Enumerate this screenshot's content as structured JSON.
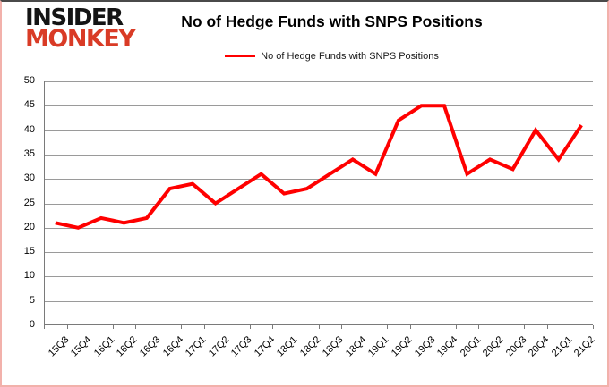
{
  "logo": {
    "line1": "INSIDER",
    "line2": "MONKEY"
  },
  "header": {
    "title": "No of Hedge Funds with SNPS Positions"
  },
  "legend": {
    "label": "No of Hedge Funds with SNPS Positions"
  },
  "colors": {
    "series": "#ff0000",
    "logo_text": "#141414",
    "logo_accent": "#d93b26",
    "gridline": "#9a9a9a",
    "axis": "#7a7a7a",
    "frame_border": "#f2b1ab"
  },
  "chart_data": {
    "type": "line",
    "title": "No of Hedge Funds with SNPS Positions",
    "categories": [
      "15Q3",
      "15Q4",
      "16Q1",
      "16Q2",
      "16Q3",
      "16Q4",
      "17Q1",
      "17Q2",
      "17Q3",
      "17Q4",
      "18Q1",
      "18Q2",
      "18Q3",
      "18Q4",
      "19Q1",
      "19Q2",
      "19Q3",
      "19Q4",
      "20Q1",
      "20Q2",
      "20Q3",
      "20Q4",
      "21Q1",
      "21Q2"
    ],
    "series": [
      {
        "name": "No of Hedge Funds with SNPS Positions",
        "color": "#ff0000",
        "values": [
          21,
          20,
          22,
          21,
          22,
          28,
          29,
          25,
          28,
          31,
          27,
          28,
          31,
          34,
          31,
          42,
          45,
          45,
          31,
          34,
          32,
          40,
          34,
          41
        ]
      }
    ],
    "xlabel": "",
    "ylabel": "",
    "ylim": [
      0,
      50
    ],
    "ytick_step": 5,
    "grid": true,
    "legend_position": "top",
    "x_tick_rotation": 45
  }
}
